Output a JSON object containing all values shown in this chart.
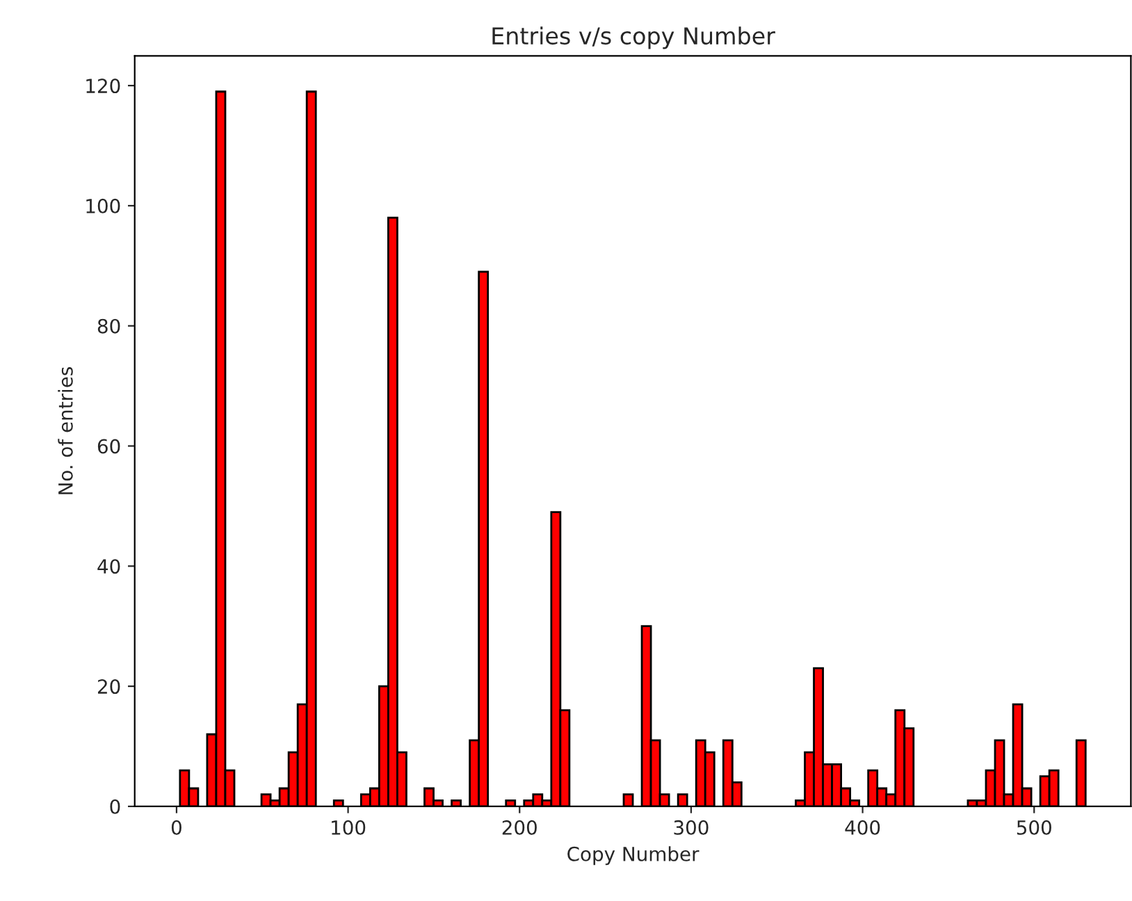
{
  "chart_data": {
    "type": "histogram",
    "title": "Entries v/s copy Number",
    "xlabel": "Copy Number",
    "ylabel": "No. of entries",
    "color": "#ff0000",
    "bins": [
      2,
      7.28,
      12.56,
      17.84,
      23.12,
      28.4,
      33.68,
      38.96,
      44.24,
      49.52,
      54.8,
      60.08,
      65.36,
      70.64,
      75.92,
      81.2,
      86.48,
      91.76,
      97.04,
      102.32,
      107.6,
      112.88,
      118.16,
      123.44,
      128.72,
      134,
      139.28,
      144.56,
      149.84,
      155.12,
      160.4,
      165.68,
      170.96,
      176.24,
      181.52,
      186.8,
      192.08,
      197.36,
      202.64,
      207.92,
      213.2,
      218.48,
      223.76,
      229.04,
      234.32,
      239.6,
      244.88,
      250.16,
      255.44,
      260.72,
      266,
      271.28,
      276.56,
      281.84,
      287.12,
      292.4,
      297.68,
      302.96,
      308.24,
      313.52,
      318.8,
      324.08,
      329.36,
      334.64,
      339.92,
      345.2,
      350.48,
      355.76,
      361.04,
      366.32,
      371.6,
      376.88,
      382.16,
      387.44,
      392.72,
      398,
      403.28,
      408.56,
      413.84,
      419.12,
      424.4,
      429.68,
      434.96,
      440.24,
      445.52,
      450.8,
      456.08,
      461.36,
      466.64,
      471.92,
      477.2,
      482.48,
      487.76,
      493.04,
      498.32,
      503.6,
      508.88,
      514.16,
      519.44,
      524.72,
      530
    ],
    "values": [
      6,
      3,
      0,
      12,
      119,
      6,
      0,
      0,
      0,
      2,
      1,
      3,
      9,
      17,
      119,
      0,
      0,
      1,
      0,
      0,
      2,
      3,
      20,
      98,
      9,
      0,
      0,
      3,
      1,
      0,
      1,
      0,
      11,
      89,
      0,
      0,
      1,
      0,
      1,
      2,
      1,
      49,
      16,
      0,
      0,
      0,
      0,
      0,
      0,
      2,
      0,
      30,
      11,
      2,
      0,
      2,
      0,
      11,
      9,
      0,
      11,
      4,
      0,
      0,
      0,
      0,
      0,
      0,
      1,
      9,
      23,
      7,
      7,
      3,
      1,
      0,
      6,
      3,
      2,
      16,
      13,
      0,
      0,
      0,
      0,
      0,
      0,
      1,
      1,
      6,
      11,
      2,
      17,
      3,
      0,
      5,
      6,
      0,
      0,
      11
    ],
    "xlim": [
      -24.4,
      556.4
    ],
    "ylim": [
      0,
      124.95
    ],
    "xticks": [
      0,
      100,
      200,
      300,
      400,
      500
    ],
    "yticks": [
      0,
      20,
      40,
      60,
      80,
      100,
      120
    ],
    "grid": false
  }
}
